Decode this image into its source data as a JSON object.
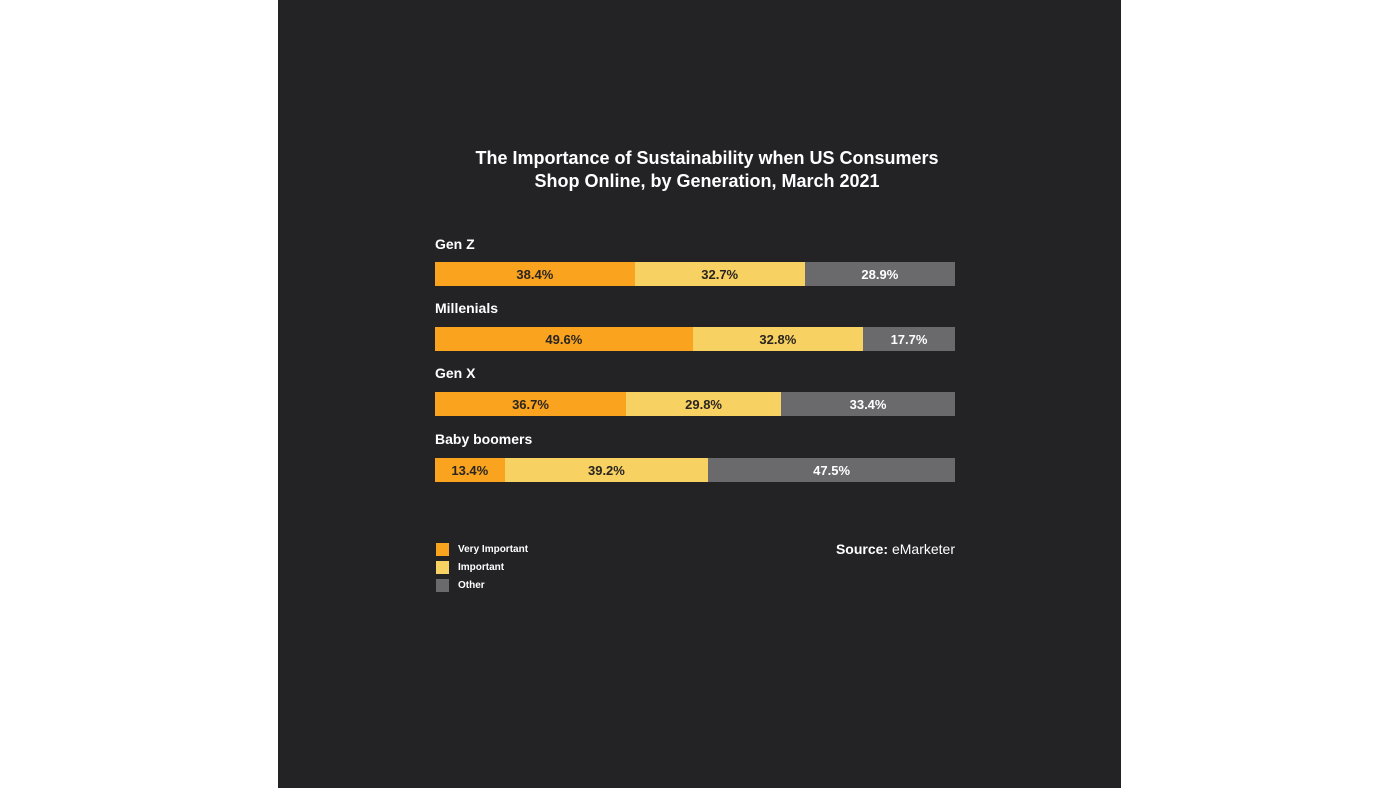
{
  "chart_data": {
    "type": "bar",
    "orientation": "horizontal-stacked-100",
    "title": "The Importance of Sustainability when US Consumers Shop Online, by Generation, March 2021",
    "title_lines": [
      "The Importance of Sustainability when US Consumers",
      "Shop Online, by Generation, March 2021"
    ],
    "categories": [
      "Gen Z",
      "Millenials",
      "Gen X",
      "Baby boomers"
    ],
    "series": [
      {
        "name": "Very Important",
        "color": "#F9A31F",
        "values": [
          38.4,
          49.6,
          36.7,
          13.4
        ],
        "labels": [
          "38.4%",
          "49.6%",
          "36.7%",
          "13.4%"
        ],
        "label_color": "#2a2520"
      },
      {
        "name": "Important",
        "color": "#F7D162",
        "values": [
          32.7,
          32.8,
          29.8,
          39.2
        ],
        "labels": [
          "32.7%",
          "32.8%",
          "29.8%",
          "39.2%"
        ],
        "label_color": "#2a2520"
      },
      {
        "name": "Other",
        "color": "#6A696C",
        "values": [
          28.9,
          17.7,
          33.4,
          47.5
        ],
        "labels": [
          "28.9%",
          "17.7%",
          "33.4%",
          "47.5%"
        ],
        "label_color": "#ffffff"
      }
    ],
    "legend_position": "bottom-left",
    "xlabel": "",
    "ylabel": "",
    "source_label": "Source:",
    "source_value": "eMarketer"
  }
}
